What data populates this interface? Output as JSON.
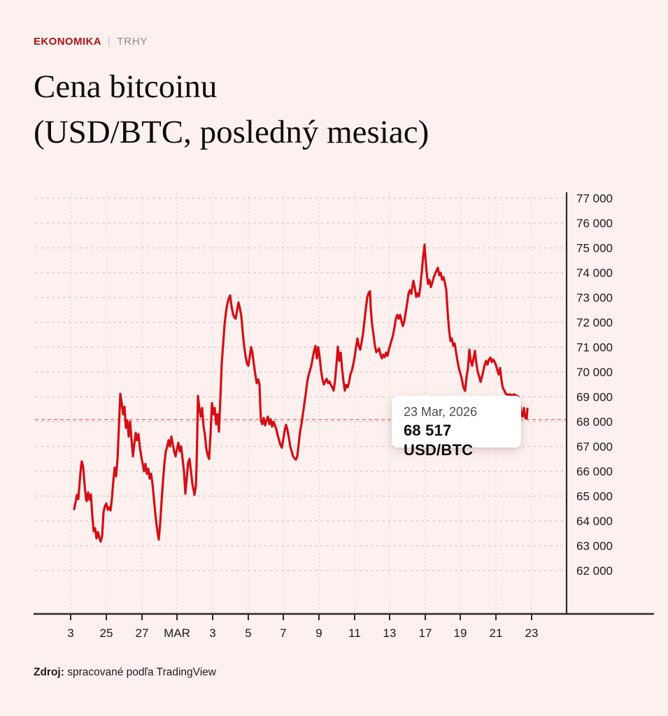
{
  "breadcrumb": {
    "section": "EKONOMIKA",
    "separator": "|",
    "subsection": "TRHY"
  },
  "title": {
    "line1": "Cena bitcoinu",
    "line2": "(USD/BTC, posledný mesiac)"
  },
  "tooltip": {
    "date": "23 Mar, 2026",
    "value": "68 517 USD/BTC"
  },
  "source": {
    "label": "Zdroj:",
    "text": " spracované podľa TradingView"
  },
  "colors": {
    "background": "#fdf1ef",
    "line": "#d40e15",
    "accent_red": "#b01218",
    "grid": "#dcd2cf",
    "last_price_dash": "#e8837d",
    "axis": "#2a2a2a"
  },
  "chart_data": {
    "type": "line",
    "title": "Cena bitcoinu (USD/BTC, posledný mesiac)",
    "unit": "USD/BTC",
    "ylim": [
      62000,
      77000
    ],
    "grid": true,
    "legend": false,
    "y_tick_values": [
      77000,
      76000,
      75000,
      74000,
      73000,
      72000,
      71000,
      70000,
      69000,
      68000,
      67000,
      66000,
      65000,
      64000,
      63000,
      62000
    ],
    "y_tick_labels": [
      "77 000",
      "76 000",
      "75 000",
      "74 000",
      "73 000",
      "72 000",
      "71 000",
      "70 000",
      "69 000",
      "68 000",
      "67 000",
      "66 000",
      "65 000",
      "64 000",
      "63 000",
      "62 000"
    ],
    "x_tick_labels": [
      "3",
      "25",
      "27",
      "MAR",
      "3",
      "5",
      "7",
      "9",
      "11",
      "13",
      "17",
      "19",
      "21",
      "23"
    ],
    "last_price_line_value": 68080,
    "last_point": {
      "date": "23 Mar, 2026",
      "value": 68517
    },
    "points": [
      [
        106,
        64480
      ],
      [
        108,
        64750
      ],
      [
        110,
        65050
      ],
      [
        112,
        64880
      ],
      [
        114,
        65600
      ],
      [
        116,
        66240
      ],
      [
        117,
        66400
      ],
      [
        119,
        66150
      ],
      [
        121,
        65440
      ],
      [
        123,
        64880
      ],
      [
        124,
        64800
      ],
      [
        126,
        65150
      ],
      [
        128,
        64850
      ],
      [
        130,
        65070
      ],
      [
        132,
        64200
      ],
      [
        134,
        63580
      ],
      [
        136,
        63700
      ],
      [
        138,
        63300
      ],
      [
        140,
        63550
      ],
      [
        142,
        63320
      ],
      [
        144,
        63170
      ],
      [
        146,
        63400
      ],
      [
        148,
        64350
      ],
      [
        150,
        64600
      ],
      [
        152,
        64700
      ],
      [
        154,
        64450
      ],
      [
        156,
        64550
      ],
      [
        158,
        64420
      ],
      [
        160,
        64900
      ],
      [
        162,
        65600
      ],
      [
        164,
        66150
      ],
      [
        166,
        65800
      ],
      [
        168,
        66500
      ],
      [
        170,
        67800
      ],
      [
        172,
        69120
      ],
      [
        174,
        68750
      ],
      [
        176,
        68300
      ],
      [
        178,
        68600
      ],
      [
        180,
        67750
      ],
      [
        182,
        68050
      ],
      [
        184,
        67400
      ],
      [
        186,
        68000
      ],
      [
        188,
        67300
      ],
      [
        190,
        66600
      ],
      [
        192,
        67100
      ],
      [
        194,
        67550
      ],
      [
        196,
        67250
      ],
      [
        198,
        67500
      ],
      [
        200,
        66950
      ],
      [
        202,
        66600
      ],
      [
        204,
        66300
      ],
      [
        206,
        66000
      ],
      [
        208,
        66300
      ],
      [
        210,
        65900
      ],
      [
        212,
        66100
      ],
      [
        214,
        65700
      ],
      [
        216,
        65900
      ],
      [
        218,
        65500
      ],
      [
        220,
        64900
      ],
      [
        222,
        64300
      ],
      [
        224,
        63800
      ],
      [
        226,
        63400
      ],
      [
        227,
        63250
      ],
      [
        229,
        63900
      ],
      [
        231,
        64800
      ],
      [
        233,
        65600
      ],
      [
        235,
        66300
      ],
      [
        237,
        66800
      ],
      [
        239,
        67000
      ],
      [
        241,
        67250
      ],
      [
        243,
        67000
      ],
      [
        245,
        67400
      ],
      [
        247,
        67100
      ],
      [
        249,
        66800
      ],
      [
        251,
        66600
      ],
      [
        253,
        66900
      ],
      [
        255,
        67150
      ],
      [
        257,
        66800
      ],
      [
        259,
        67000
      ],
      [
        261,
        66500
      ],
      [
        263,
        66000
      ],
      [
        265,
        65100
      ],
      [
        267,
        65700
      ],
      [
        269,
        66350
      ],
      [
        271,
        66500
      ],
      [
        273,
        66000
      ],
      [
        275,
        65500
      ],
      [
        277,
        65200
      ],
      [
        278,
        65050
      ],
      [
        280,
        65400
      ],
      [
        281,
        66200
      ],
      [
        282,
        67500
      ],
      [
        283,
        69030
      ],
      [
        285,
        68550
      ],
      [
        287,
        68200
      ],
      [
        289,
        68550
      ],
      [
        291,
        67800
      ],
      [
        293,
        67450
      ],
      [
        295,
        66900
      ],
      [
        297,
        66650
      ],
      [
        299,
        66500
      ],
      [
        301,
        67500
      ],
      [
        303,
        68750
      ],
      [
        305,
        68300
      ],
      [
        307,
        68550
      ],
      [
        309,
        67900
      ],
      [
        311,
        68300
      ],
      [
        313,
        67600
      ],
      [
        315,
        68900
      ],
      [
        317,
        70350
      ],
      [
        319,
        71100
      ],
      [
        321,
        71900
      ],
      [
        323,
        72400
      ],
      [
        325,
        72750
      ],
      [
        327,
        72950
      ],
      [
        329,
        73085
      ],
      [
        331,
        72650
      ],
      [
        333,
        72350
      ],
      [
        335,
        72200
      ],
      [
        337,
        72150
      ],
      [
        339,
        72500
      ],
      [
        341,
        72800
      ],
      [
        343,
        72550
      ],
      [
        345,
        72250
      ],
      [
        347,
        71600
      ],
      [
        349,
        71050
      ],
      [
        351,
        70650
      ],
      [
        353,
        70350
      ],
      [
        355,
        70250
      ],
      [
        357,
        70600
      ],
      [
        359,
        71000
      ],
      [
        361,
        70750
      ],
      [
        363,
        70300
      ],
      [
        365,
        69900
      ],
      [
        367,
        69550
      ],
      [
        369,
        69700
      ],
      [
        371,
        69500
      ],
      [
        372,
        68700
      ],
      [
        373,
        68050
      ],
      [
        375,
        67900
      ],
      [
        377,
        68150
      ],
      [
        379,
        67850
      ],
      [
        381,
        68050
      ],
      [
        383,
        68200
      ],
      [
        385,
        67900
      ],
      [
        387,
        68100
      ],
      [
        389,
        67800
      ],
      [
        391,
        68000
      ],
      [
        393,
        67850
      ],
      [
        395,
        67700
      ],
      [
        397,
        67450
      ],
      [
        399,
        67250
      ],
      [
        401,
        67050
      ],
      [
        403,
        66950
      ],
      [
        405,
        67300
      ],
      [
        407,
        67650
      ],
      [
        409,
        67870
      ],
      [
        411,
        67650
      ],
      [
        413,
        67350
      ],
      [
        415,
        67000
      ],
      [
        417,
        66800
      ],
      [
        419,
        66600
      ],
      [
        421,
        66520
      ],
      [
        423,
        66470
      ],
      [
        425,
        66600
      ],
      [
        427,
        67100
      ],
      [
        429,
        67600
      ],
      [
        431,
        67900
      ],
      [
        433,
        68300
      ],
      [
        435,
        68700
      ],
      [
        437,
        69100
      ],
      [
        439,
        69550
      ],
      [
        441,
        69850
      ],
      [
        443,
        70050
      ],
      [
        445,
        70250
      ],
      [
        447,
        70550
      ],
      [
        449,
        70850
      ],
      [
        451,
        71050
      ],
      [
        453,
        70550
      ],
      [
        455,
        71000
      ],
      [
        457,
        70600
      ],
      [
        459,
        70050
      ],
      [
        461,
        69700
      ],
      [
        463,
        69500
      ],
      [
        465,
        69620
      ],
      [
        467,
        69720
      ],
      [
        469,
        69550
      ],
      [
        471,
        69620
      ],
      [
        473,
        69480
      ],
      [
        475,
        69380
      ],
      [
        477,
        69250
      ],
      [
        479,
        69650
      ],
      [
        481,
        70300
      ],
      [
        483,
        71020
      ],
      [
        485,
        70450
      ],
      [
        487,
        70780
      ],
      [
        489,
        70150
      ],
      [
        491,
        69650
      ],
      [
        493,
        69250
      ],
      [
        495,
        69480
      ],
      [
        497,
        69380
      ],
      [
        499,
        69580
      ],
      [
        501,
        69900
      ],
      [
        503,
        70050
      ],
      [
        505,
        70300
      ],
      [
        507,
        70600
      ],
      [
        509,
        71000
      ],
      [
        511,
        71350
      ],
      [
        513,
        71050
      ],
      [
        515,
        70900
      ],
      [
        517,
        71200
      ],
      [
        519,
        71550
      ],
      [
        521,
        72050
      ],
      [
        523,
        72550
      ],
      [
        525,
        73000
      ],
      [
        527,
        73180
      ],
      [
        529,
        73250
      ],
      [
        530,
        72600
      ],
      [
        532,
        71900
      ],
      [
        534,
        71500
      ],
      [
        536,
        71050
      ],
      [
        538,
        70800
      ],
      [
        540,
        70850
      ],
      [
        542,
        70950
      ],
      [
        544,
        70700
      ],
      [
        546,
        70550
      ],
      [
        548,
        70700
      ],
      [
        550,
        70600
      ],
      [
        552,
        70780
      ],
      [
        554,
        70650
      ],
      [
        556,
        70900
      ],
      [
        558,
        71100
      ],
      [
        560,
        71300
      ],
      [
        562,
        71500
      ],
      [
        564,
        71800
      ],
      [
        566,
        72150
      ],
      [
        568,
        72300
      ],
      [
        570,
        72150
      ],
      [
        572,
        72300
      ],
      [
        574,
        72050
      ],
      [
        576,
        71850
      ],
      [
        578,
        72050
      ],
      [
        580,
        72400
      ],
      [
        582,
        72750
      ],
      [
        584,
        73150
      ],
      [
        586,
        73300
      ],
      [
        588,
        73150
      ],
      [
        590,
        73500
      ],
      [
        591,
        73670
      ],
      [
        593,
        73400
      ],
      [
        595,
        73020
      ],
      [
        597,
        73170
      ],
      [
        599,
        73050
      ],
      [
        601,
        73450
      ],
      [
        603,
        74050
      ],
      [
        605,
        74650
      ],
      [
        607,
        75130
      ],
      [
        608,
        74700
      ],
      [
        610,
        74000
      ],
      [
        612,
        73550
      ],
      [
        614,
        73700
      ],
      [
        616,
        73420
      ],
      [
        618,
        73600
      ],
      [
        620,
        73800
      ],
      [
        622,
        73950
      ],
      [
        624,
        74080
      ],
      [
        626,
        74200
      ],
      [
        628,
        73900
      ],
      [
        630,
        74000
      ],
      [
        632,
        73720
      ],
      [
        634,
        73820
      ],
      [
        636,
        73600
      ],
      [
        638,
        73300
      ],
      [
        640,
        72400
      ],
      [
        642,
        71700
      ],
      [
        644,
        71250
      ],
      [
        646,
        71350
      ],
      [
        648,
        71050
      ],
      [
        650,
        71150
      ],
      [
        652,
        70800
      ],
      [
        654,
        70450
      ],
      [
        656,
        70150
      ],
      [
        658,
        69950
      ],
      [
        660,
        69750
      ],
      [
        662,
        69450
      ],
      [
        664,
        69280
      ],
      [
        665,
        69240
      ],
      [
        667,
        69800
      ],
      [
        669,
        70150
      ],
      [
        671,
        70900
      ],
      [
        673,
        70450
      ],
      [
        675,
        70250
      ],
      [
        677,
        70550
      ],
      [
        679,
        70850
      ],
      [
        681,
        70350
      ],
      [
        683,
        70000
      ],
      [
        685,
        69820
      ],
      [
        687,
        69600
      ],
      [
        689,
        69800
      ],
      [
        691,
        70050
      ],
      [
        693,
        70300
      ],
      [
        695,
        70450
      ],
      [
        697,
        70300
      ],
      [
        699,
        70500
      ],
      [
        701,
        70580
      ],
      [
        703,
        70400
      ],
      [
        705,
        70500
      ],
      [
        707,
        70420
      ],
      [
        709,
        70280
      ],
      [
        711,
        70080
      ],
      [
        713,
        69900
      ],
      [
        715,
        70160
      ],
      [
        717,
        69650
      ],
      [
        719,
        69350
      ],
      [
        721,
        69250
      ],
      [
        723,
        69120
      ],
      [
        726,
        69080
      ],
      [
        729,
        69100
      ],
      [
        732,
        69060
      ],
      [
        735,
        69100
      ],
      [
        738,
        69050
      ],
      [
        741,
        69000
      ],
      [
        743,
        68800
      ],
      [
        745,
        68350
      ],
      [
        747,
        68200
      ],
      [
        749,
        68550
      ],
      [
        751,
        68150
      ],
      [
        753,
        68120
      ],
      [
        754,
        68517
      ]
    ]
  }
}
